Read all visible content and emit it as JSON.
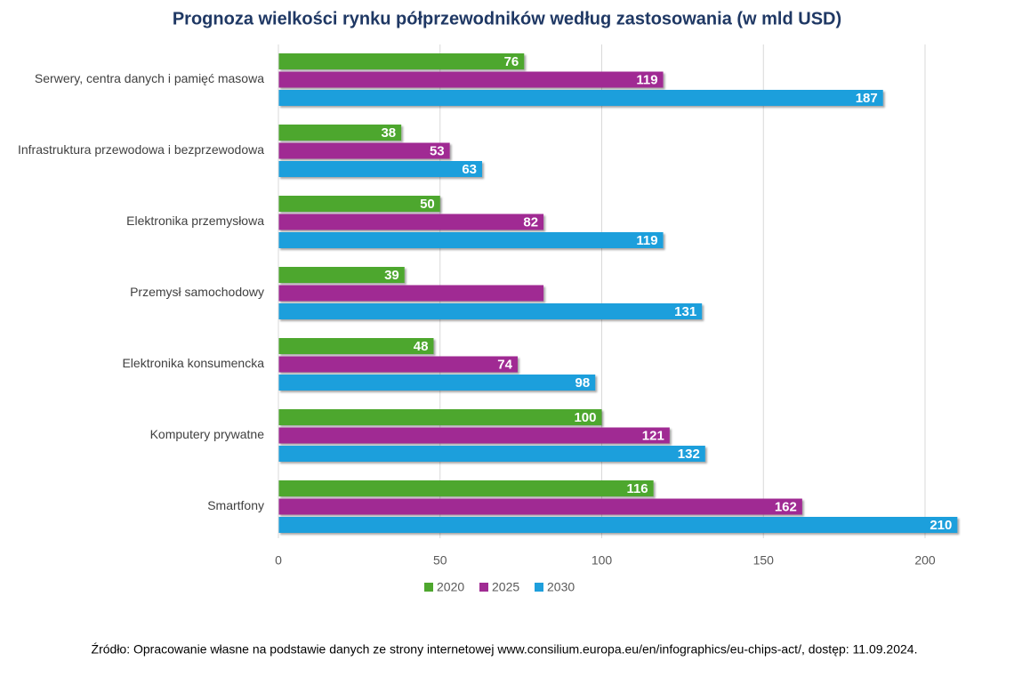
{
  "chart_data": {
    "type": "hbar",
    "title": "Prognoza wielkości rynku półprzewodników według zastosowania (w mld USD)",
    "categories": [
      "Serwery, centra danych i pamięć masowa",
      "Infrastruktura przewodowa i bezprzewodowa",
      "Elektronika przemysłowa",
      "Przemysł samochodowy",
      "Elektronika konsumencka",
      "Komputery prywatne",
      "Smartfony"
    ],
    "series": [
      {
        "name": "2020",
        "color": "#4ea72e",
        "values": [
          76,
          38,
          50,
          39,
          48,
          100,
          116
        ]
      },
      {
        "name": "2025",
        "color": "#a02b93",
        "values": [
          119,
          53,
          82,
          82,
          74,
          121,
          162
        ],
        "value_labels": [
          "119",
          "53",
          "82",
          null,
          "74",
          "121",
          "162"
        ]
      },
      {
        "name": "2030",
        "color": "#1e9fdc",
        "values": [
          187,
          63,
          119,
          131,
          98,
          132,
          210
        ]
      }
    ],
    "xlim": [
      0,
      210
    ],
    "xticks": [
      0,
      50,
      100,
      150,
      200
    ],
    "grid": true,
    "legend": "bottom",
    "source": "Źródło: Opracowanie własne na podstawie danych ze strony internetowej www.consilium.europa.eu/en/infographics/eu-chips-act/, dostęp: 11.09.2024."
  }
}
